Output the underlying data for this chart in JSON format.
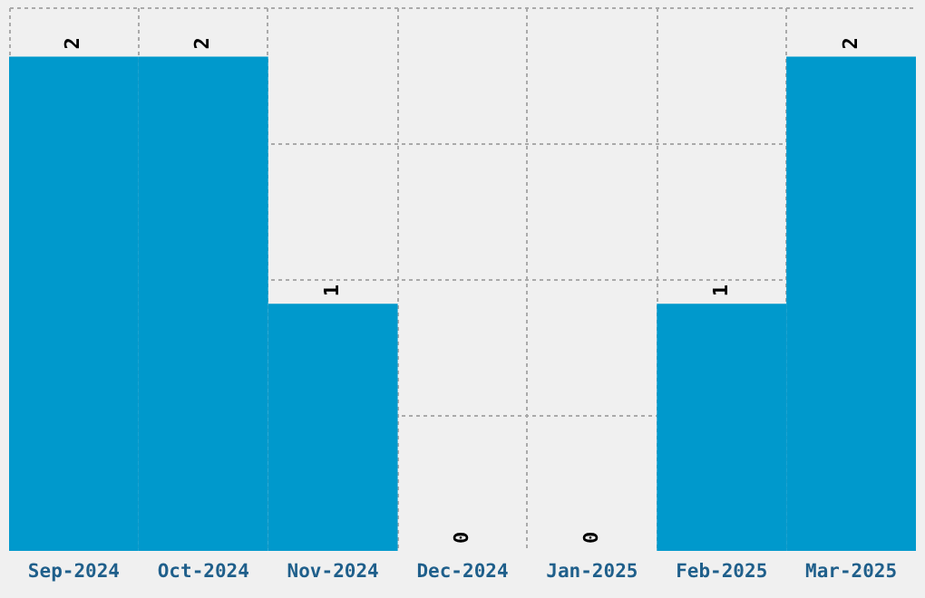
{
  "chart_data": {
    "type": "bar",
    "categories": [
      "Sep-2024",
      "Oct-2024",
      "Nov-2024",
      "Dec-2024",
      "Jan-2025",
      "Feb-2025",
      "Mar-2025"
    ],
    "values": [
      2,
      2,
      1,
      0,
      0,
      1,
      2
    ],
    "color": "#0099cc",
    "ylim": [
      0,
      2.2
    ],
    "yticks": [
      {
        "value": 0.55,
        "label": null
      },
      {
        "value": 1.1,
        "label": null
      },
      {
        "value": 1.65,
        "label": null
      },
      {
        "value": 2.2,
        "label": null
      }
    ],
    "grid": true,
    "data_labels": true,
    "tick_labels": "x"
  }
}
